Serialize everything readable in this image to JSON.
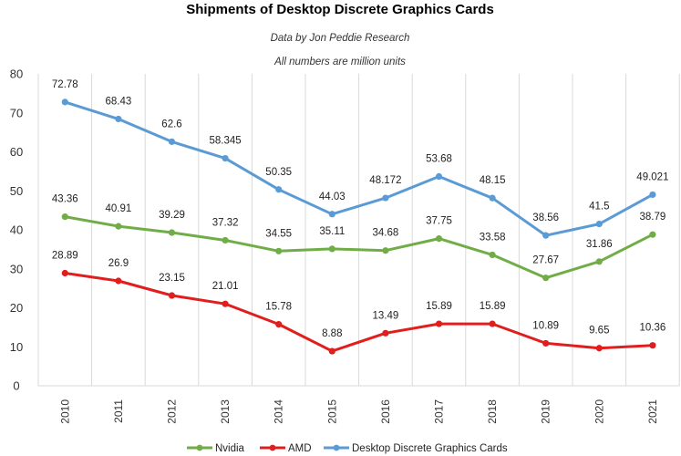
{
  "chart_data": {
    "type": "line",
    "title": "Shipments of Desktop Discrete Graphics Cards",
    "subtitles": [
      "Data by Jon Peddie Research",
      "All numbers are million units"
    ],
    "categories": [
      "2010",
      "2011",
      "2012",
      "2013",
      "2014",
      "2015",
      "2016",
      "2017",
      "2018",
      "2019",
      "2020",
      "2021"
    ],
    "ylim": [
      0,
      80
    ],
    "yticks": [
      0,
      10,
      20,
      30,
      40,
      50,
      60,
      70,
      80
    ],
    "grid": "vertical",
    "legend_position": "bottom",
    "series": [
      {
        "name": "Nvidia",
        "color": "#70ad47",
        "values": [
          43.36,
          40.91,
          39.29,
          37.32,
          34.55,
          35.11,
          34.68,
          37.75,
          33.58,
          27.67,
          31.86,
          38.79
        ],
        "labels": [
          "43.36",
          "40.91",
          "39.29",
          "37.32",
          "34.55",
          "35.11",
          "34.68",
          "37.75",
          "33.58",
          "27.67",
          "31.86",
          "38.79"
        ]
      },
      {
        "name": "AMD",
        "color": "#e01e1e",
        "values": [
          28.89,
          26.9,
          23.15,
          21.01,
          15.78,
          8.88,
          13.49,
          15.89,
          15.89,
          10.89,
          9.65,
          10.36
        ],
        "labels": [
          "28.89",
          "26.9",
          "23.15",
          "21.01",
          "15.78",
          "8.88",
          "13.49",
          "15.89",
          "15.89",
          "10.89",
          "9.65",
          "10.36"
        ]
      },
      {
        "name": "Desktop Discrete Graphics Cards",
        "color": "#5b9bd5",
        "values": [
          72.78,
          68.43,
          62.6,
          58.345,
          50.35,
          44.03,
          48.172,
          53.68,
          48.15,
          38.56,
          41.5,
          49.021
        ],
        "labels": [
          "72.78",
          "68.43",
          "62.6",
          "58.345",
          "50.35",
          "44.03",
          "48.172",
          "53.68",
          "48.15",
          "38.56",
          "41.5",
          "49.021"
        ]
      }
    ]
  }
}
